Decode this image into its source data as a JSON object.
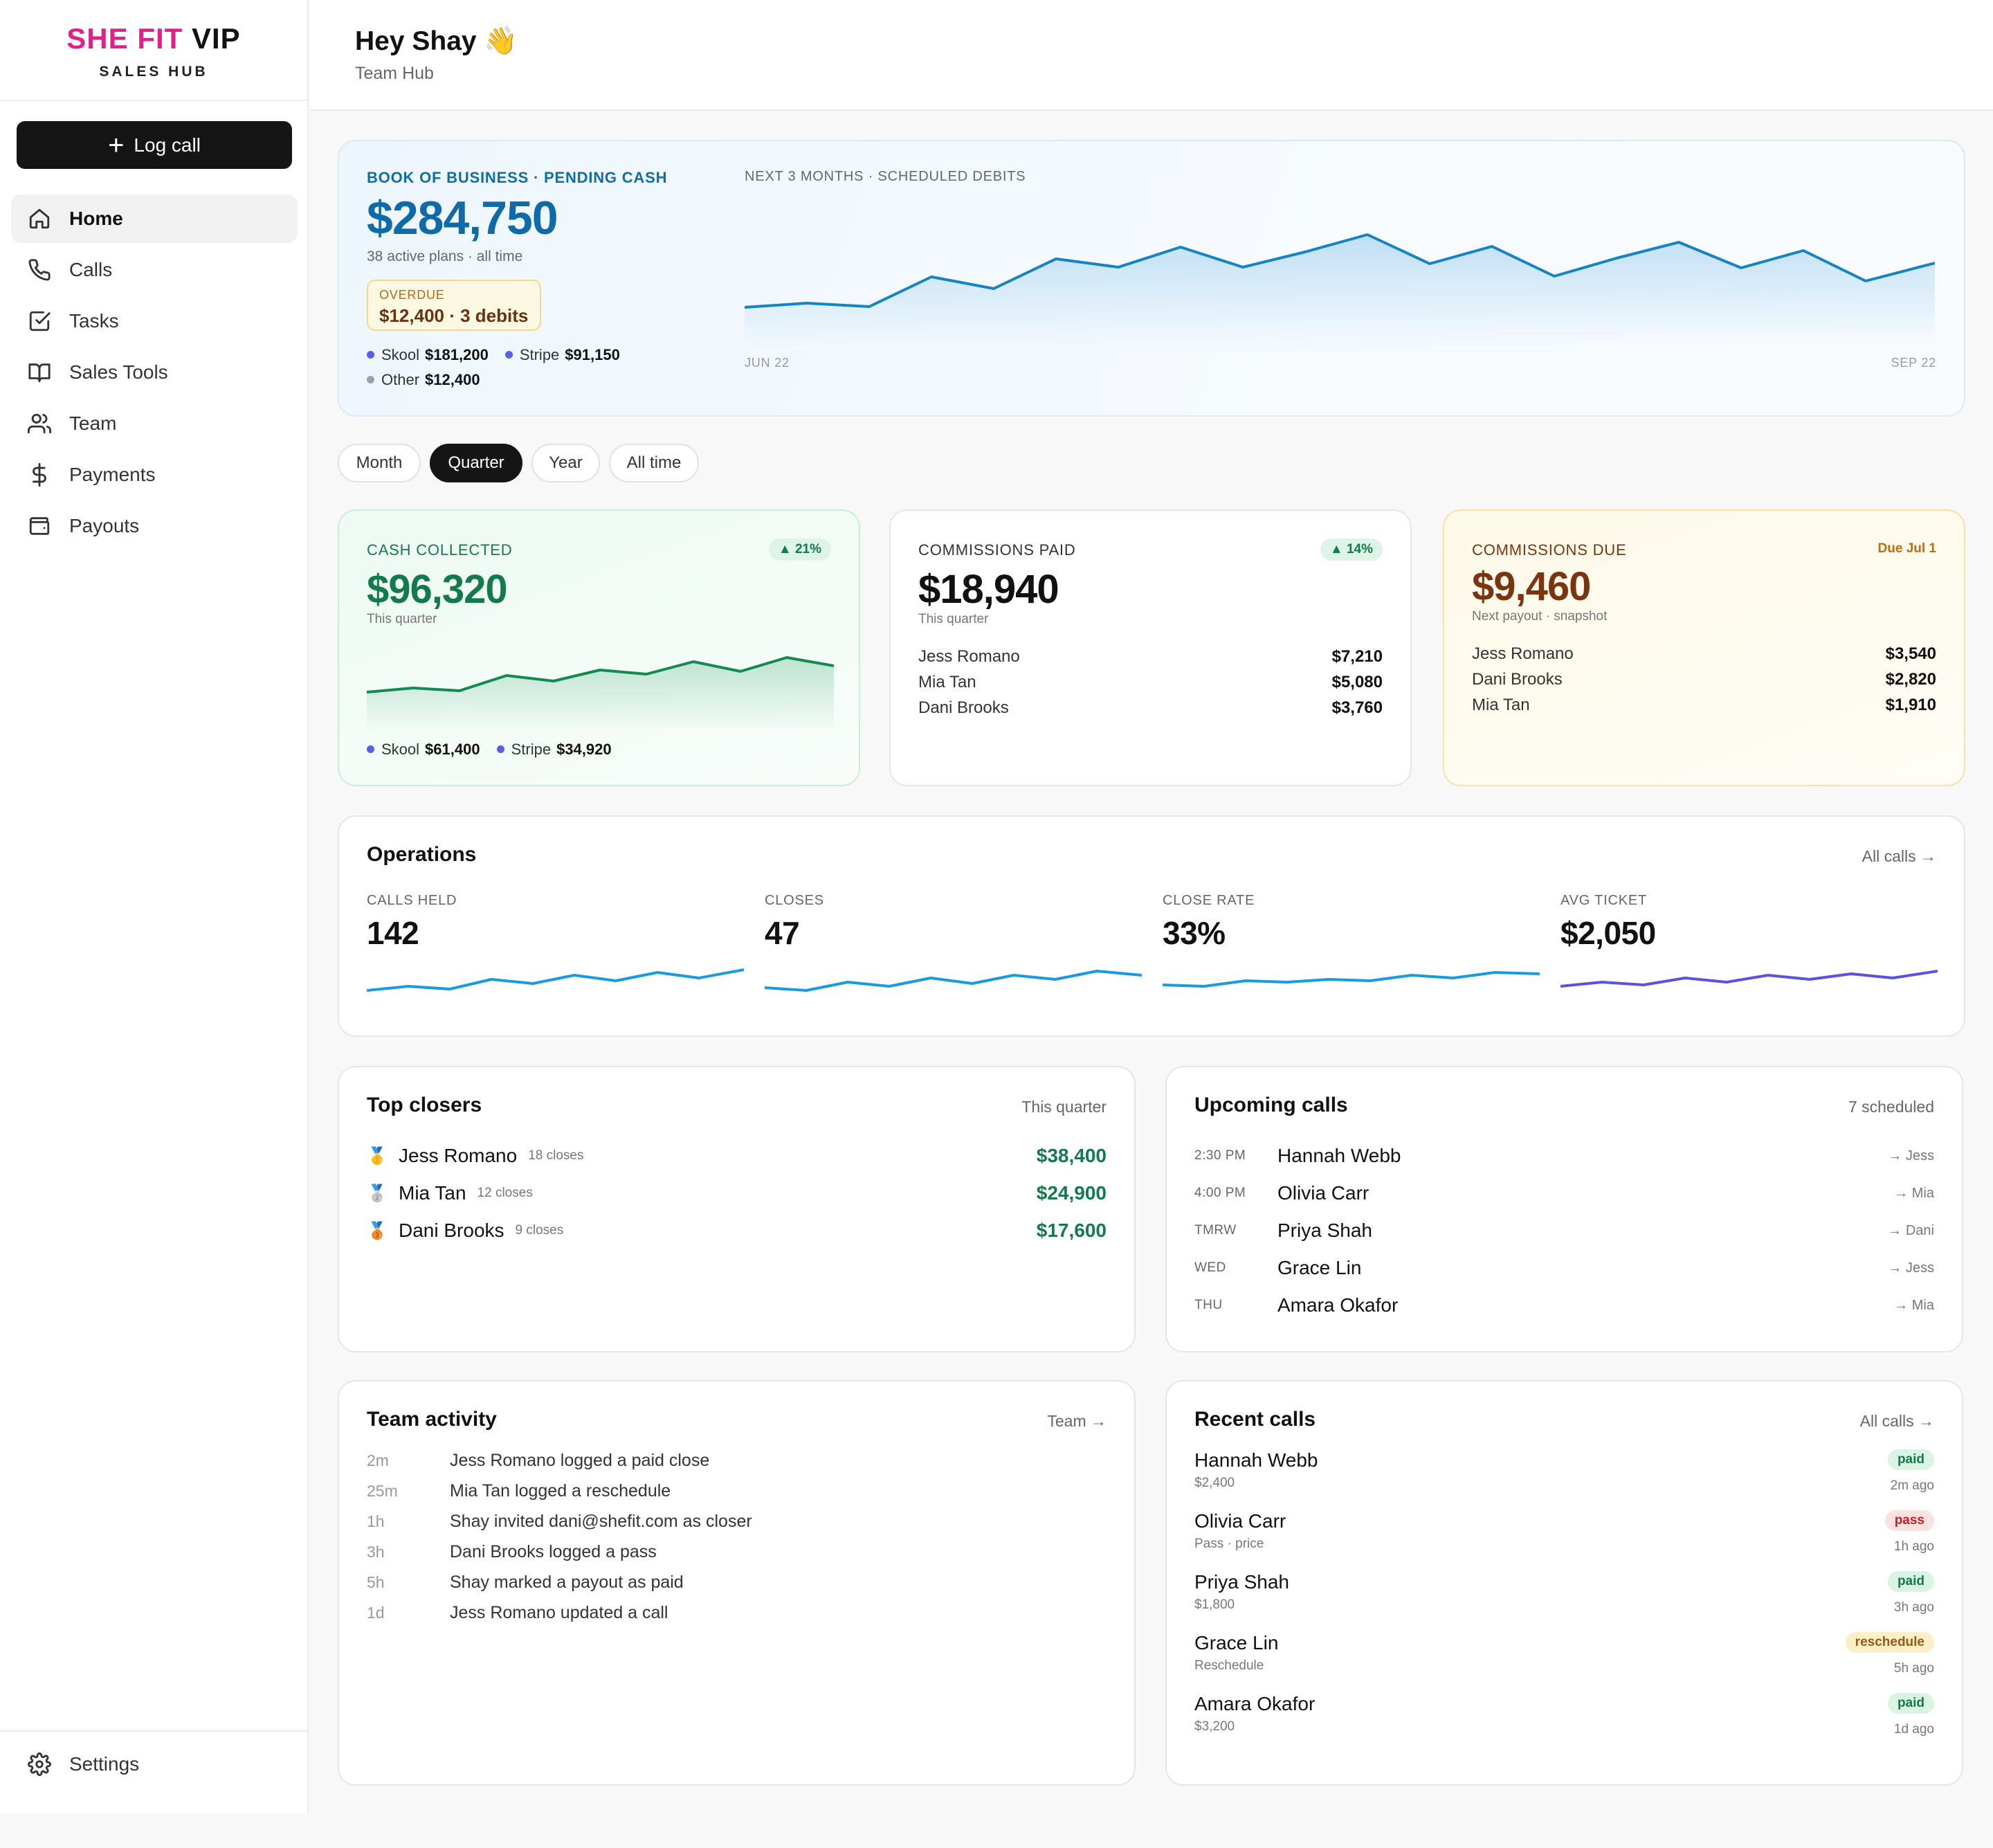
{
  "brand": {
    "line1_pink": "SHE FIT",
    "line1_dark": "VIP",
    "subtitle": "SALES HUB"
  },
  "sidebar": {
    "log_call": "Log call",
    "items": [
      {
        "label": "Home",
        "icon": "home-icon",
        "active": true
      },
      {
        "label": "Calls",
        "icon": "phone-icon"
      },
      {
        "label": "Tasks",
        "icon": "checkbox-icon"
      },
      {
        "label": "Sales Tools",
        "icon": "book-icon"
      },
      {
        "label": "Team",
        "icon": "users-icon"
      },
      {
        "label": "Payments",
        "icon": "dollar-icon"
      },
      {
        "label": "Payouts",
        "icon": "wallet-icon"
      }
    ],
    "settings": "Settings"
  },
  "header": {
    "greeting": "Hey Shay 👋",
    "subtitle": "Team Hub"
  },
  "book": {
    "title": "BOOK OF BUSINESS · PENDING CASH",
    "value": "$284,750",
    "sub": "38 active plans · all time",
    "overdue_label": "OVERDUE",
    "overdue_value": "$12,400 · 3 debits",
    "legend": [
      {
        "name": "Skool",
        "value": "$181,200",
        "color": "#5b5ee8"
      },
      {
        "name": "Stripe",
        "value": "$91,150",
        "color": "#5b5ee8"
      },
      {
        "name": "Other",
        "value": "$12,400",
        "color": "#9aa0a8"
      }
    ],
    "chart_title": "NEXT 3 MONTHS · SCHEDULED DEBITS",
    "x_start": "JUN 22",
    "x_end": "SEP 22"
  },
  "filters": {
    "items": [
      "Month",
      "Quarter",
      "Year",
      "All time"
    ],
    "active": "Quarter"
  },
  "cash": {
    "label": "CASH COLLECTED",
    "badge": "▲ 21%",
    "value": "$96,320",
    "sub": "This quarter",
    "legend": [
      {
        "name": "Skool",
        "value": "$61,400",
        "color": "#5b5ee8"
      },
      {
        "name": "Stripe",
        "value": "$34,920",
        "color": "#5b5ee8"
      }
    ]
  },
  "commissions_paid": {
    "label": "COMMISSIONS PAID",
    "badge": "▲ 14%",
    "value": "$18,940",
    "sub": "This quarter",
    "rows": [
      {
        "name": "Jess Romano",
        "amount": "$7,210"
      },
      {
        "name": "Mia Tan",
        "amount": "$5,080"
      },
      {
        "name": "Dani Brooks",
        "amount": "$3,760"
      }
    ]
  },
  "commissions_due": {
    "label": "COMMISSIONS DUE",
    "due": "Due Jul 1",
    "value": "$9,460",
    "sub": "Next payout · snapshot",
    "rows": [
      {
        "name": "Jess Romano",
        "amount": "$3,540"
      },
      {
        "name": "Dani Brooks",
        "amount": "$2,820"
      },
      {
        "name": "Mia Tan",
        "amount": "$1,910"
      }
    ]
  },
  "operations": {
    "title": "Operations",
    "link": "All calls →",
    "metrics": [
      {
        "label": "CALLS HELD",
        "value": "142",
        "color": "#1a9be0"
      },
      {
        "label": "CLOSES",
        "value": "47",
        "color": "#1a9be0"
      },
      {
        "label": "CLOSE RATE",
        "value": "33%",
        "color": "#1a9be0"
      },
      {
        "label": "AVG TICKET",
        "value": "$2,050",
        "color": "#5b52e0"
      }
    ]
  },
  "top_closers": {
    "title": "Top closers",
    "meta": "This quarter",
    "rows": [
      {
        "medal": "🥇",
        "name": "Jess Romano",
        "count": "18 closes",
        "amount": "$38,400"
      },
      {
        "medal": "🥈",
        "name": "Mia Tan",
        "count": "12 closes",
        "amount": "$24,900"
      },
      {
        "medal": "🥉",
        "name": "Dani Brooks",
        "count": "9 closes",
        "amount": "$17,600"
      }
    ]
  },
  "upcoming": {
    "title": "Upcoming calls",
    "meta": "7 scheduled",
    "rows": [
      {
        "time": "2:30 PM",
        "name": "Hannah Webb",
        "who": "→ Jess"
      },
      {
        "time": "4:00 PM",
        "name": "Olivia Carr",
        "who": "→ Mia"
      },
      {
        "time": "TMRW",
        "name": "Priya Shah",
        "who": "→ Dani"
      },
      {
        "time": "WED",
        "name": "Grace Lin",
        "who": "→ Jess"
      },
      {
        "time": "THU",
        "name": "Amara Okafor",
        "who": "→ Mia"
      }
    ]
  },
  "activity": {
    "title": "Team activity",
    "link": "Team →",
    "rows": [
      {
        "t": "2m",
        "text": "Jess Romano logged a paid close"
      },
      {
        "t": "25m",
        "text": "Mia Tan logged a reschedule"
      },
      {
        "t": "1h",
        "text": "Shay invited dani@shefit.com as closer"
      },
      {
        "t": "3h",
        "text": "Dani Brooks logged a pass"
      },
      {
        "t": "5h",
        "text": "Shay marked a payout as paid"
      },
      {
        "t": "1d",
        "text": "Jess Romano updated a call"
      }
    ]
  },
  "recent": {
    "title": "Recent calls",
    "link": "All calls →",
    "rows": [
      {
        "name": "Hannah Webb",
        "detail": "$2,400",
        "tag": "paid",
        "ago": "2m ago"
      },
      {
        "name": "Olivia Carr",
        "detail": "Pass · price",
        "tag": "pass",
        "ago": "1h ago"
      },
      {
        "name": "Priya Shah",
        "detail": "$1,800",
        "tag": "paid",
        "ago": "3h ago"
      },
      {
        "name": "Grace Lin",
        "detail": "Reschedule",
        "tag": "reschedule",
        "ago": "5h ago"
      },
      {
        "name": "Amara Okafor",
        "detail": "$3,200",
        "tag": "paid",
        "ago": "1d ago"
      }
    ]
  }
}
